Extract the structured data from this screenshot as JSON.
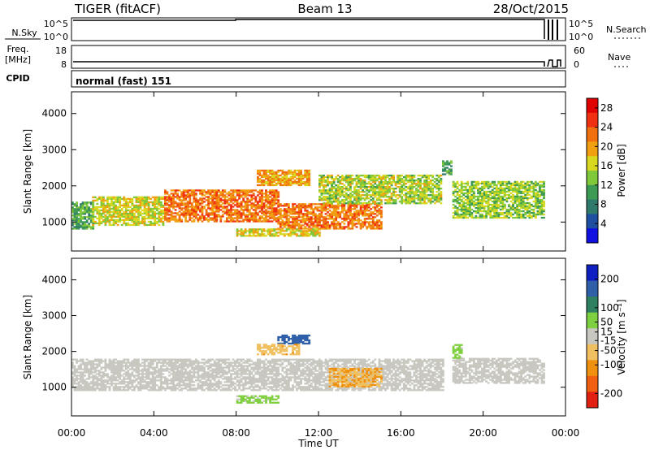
{
  "header": {
    "radar": "TIGER (fitACF)",
    "beam": "Beam 13",
    "date": "28/Oct/2015"
  },
  "strips": {
    "nsky_label": "N.Sky",
    "nsky_ticks": [
      "10^5",
      "10^0"
    ],
    "nsearch_label": "N.Search",
    "freq_label_line1": "Freq.",
    "freq_label_line2": "[MHz]",
    "freq_ticks": [
      "18",
      "8"
    ],
    "nave_label": "Nave",
    "nave_ticks": [
      "60",
      "0"
    ],
    "cpid_label": "CPID",
    "cpid_value": "normal (fast) 151"
  },
  "colors": {
    "power_scale": [
      "#1010e0",
      "#1f4fa0",
      "#2f7a6a",
      "#3d9a55",
      "#7fc83a",
      "#d8d820",
      "#f0a010",
      "#f07010",
      "#f03010",
      "#e00000"
    ],
    "velocity_scale": [
      "#1020c0",
      "#2f5fa8",
      "#2f8060",
      "#7fd040",
      "#c8c8c0",
      "#f0c060",
      "#f09010",
      "#f06010",
      "#e02010"
    ]
  },
  "chart_data": [
    {
      "type": "heatmap",
      "panel": "power",
      "xlabel": "",
      "ylabel": "Slant Range [km]",
      "x_ticks": [
        "00:00",
        "04:00",
        "08:00",
        "12:00",
        "16:00",
        "20:00",
        "00:00"
      ],
      "xlim_hours": [
        0,
        24
      ],
      "y_ticks": [
        1000,
        2000,
        3000,
        4000
      ],
      "ylim": [
        200,
        4600
      ],
      "colorbar": {
        "label": "Power [dB]",
        "ticks": [
          4,
          8,
          12,
          16,
          20,
          24,
          28
        ],
        "range": [
          0,
          30
        ]
      },
      "scatter_regions": [
        {
          "t_start": 0,
          "t_end": 1.0,
          "range_low": 800,
          "range_high": 1550,
          "power_dB": 11
        },
        {
          "t_start": 1.0,
          "t_end": 4.5,
          "range_low": 900,
          "range_high": 1700,
          "power_dB": 16
        },
        {
          "t_start": 4.5,
          "t_end": 10.0,
          "range_low": 1000,
          "range_high": 1900,
          "power_dB": 22
        },
        {
          "t_start": 9.0,
          "t_end": 11.5,
          "range_low": 2000,
          "range_high": 2450,
          "power_dB": 20
        },
        {
          "t_start": 10.0,
          "t_end": 15.0,
          "range_low": 800,
          "range_high": 1500,
          "power_dB": 22
        },
        {
          "t_start": 8.0,
          "t_end": 12.0,
          "range_low": 600,
          "range_high": 800,
          "power_dB": 17
        },
        {
          "t_start": 12.0,
          "t_end": 18.0,
          "range_low": 1500,
          "range_high": 2300,
          "power_dB": 15
        },
        {
          "t_start": 18.0,
          "t_end": 18.5,
          "range_low": 2300,
          "range_high": 2700,
          "power_dB": 10
        },
        {
          "t_start": 18.5,
          "t_end": 23.0,
          "range_low": 1100,
          "range_high": 2100,
          "power_dB": 14
        }
      ]
    },
    {
      "type": "heatmap",
      "panel": "velocity",
      "xlabel": "Time UT",
      "ylabel": "Slant Range [km]",
      "x_ticks": [
        "00:00",
        "04:00",
        "08:00",
        "12:00",
        "16:00",
        "20:00",
        "00:00"
      ],
      "xlim_hours": [
        0,
        24
      ],
      "y_ticks": [
        1000,
        2000,
        3000,
        4000
      ],
      "ylim": [
        200,
        4600
      ],
      "colorbar": {
        "label": "Velocity [m s⁻¹]",
        "ticks": [
          200,
          100,
          50,
          15,
          -15,
          -50,
          -100,
          -200
        ],
        "range": [
          -250,
          250
        ]
      },
      "scatter_regions": [
        {
          "t_start": 0,
          "t_end": 18.0,
          "range_low": 900,
          "range_high": 1800,
          "velocity": 0
        },
        {
          "t_start": 18.5,
          "t_end": 23.0,
          "range_low": 1100,
          "range_high": 1800,
          "velocity": 0
        },
        {
          "t_start": 10.0,
          "t_end": 11.5,
          "range_low": 2200,
          "range_high": 2450,
          "velocity": 180
        },
        {
          "t_start": 9.0,
          "t_end": 11.0,
          "range_low": 1900,
          "range_high": 2200,
          "velocity": -70
        },
        {
          "t_start": 12.5,
          "t_end": 15.0,
          "range_low": 1000,
          "range_high": 1500,
          "velocity": -80
        },
        {
          "t_start": 8.0,
          "t_end": 10.0,
          "range_low": 550,
          "range_high": 750,
          "velocity": 40
        },
        {
          "t_start": 18.5,
          "t_end": 19.0,
          "range_low": 1800,
          "range_high": 2200,
          "velocity": 40
        }
      ]
    }
  ]
}
